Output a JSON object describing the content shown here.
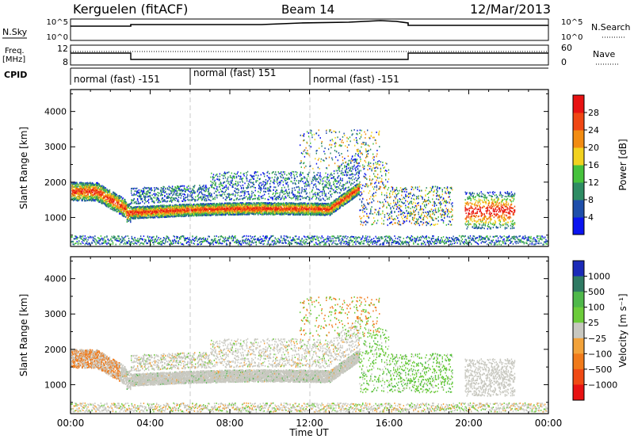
{
  "header": {
    "radar": "Kerguelen (fitACF)",
    "beam": "Beam 14",
    "date": "12/Mar/2013"
  },
  "params": {
    "nsky_label": "N.Sky",
    "nsearch_label": "N.Search",
    "nsky_ticks": [
      "10^5",
      "10^0"
    ],
    "freq_label_1": "Freq.",
    "freq_label_2": "[MHz]",
    "freq_ticks": [
      "12",
      "8"
    ],
    "nave_label": "Nave",
    "nave_ticks": [
      "60",
      "0"
    ],
    "cpid_label": "CPID",
    "cpid_segments": [
      {
        "label": "normal (fast) -151",
        "start": 0,
        "end": 6
      },
      {
        "label": "normal (fast) 151",
        "start": 6,
        "end": 12
      },
      {
        "label": "normal (fast) -151",
        "start": 12,
        "end": 24
      }
    ]
  },
  "chart_data": [
    {
      "type": "heatmap",
      "title": "",
      "ylabel": "Slant Range [km]",
      "xlabel": "",
      "x_range": [
        0,
        24
      ],
      "y_range": [
        180,
        4620
      ],
      "y_ticks": [
        "1000",
        "2000",
        "3000",
        "4000"
      ],
      "colorbar": {
        "label": "Power [dB]",
        "ticks": [
          "4",
          "8",
          "12",
          "16",
          "20",
          "24",
          "28"
        ],
        "colors": [
          "#0a14f0",
          "#1e4eaa",
          "#2e8c63",
          "#46c23c",
          "#f2d21f",
          "#f28c12",
          "#f04714",
          "#e81212"
        ]
      }
    },
    {
      "type": "heatmap",
      "title": "",
      "ylabel": "Slant Range [km]",
      "xlabel": "Time UT",
      "x_range": [
        0,
        24
      ],
      "y_range": [
        180,
        4620
      ],
      "y_ticks": [
        "1000",
        "2000",
        "3000",
        "4000"
      ],
      "x_ticks": [
        "00:00",
        "04:00",
        "08:00",
        "12:00",
        "16:00",
        "20:00",
        "00:00"
      ],
      "colorbar": {
        "label": "Velocity [m s⁻¹]",
        "ticks": [
          "1000",
          "500",
          "100",
          "25",
          "−25",
          "−100",
          "−500",
          "−1000"
        ],
        "colors": [
          "#1b2ab8",
          "#2f7a63",
          "#4fb84a",
          "#6ccc3a",
          "#c8c8c0",
          "#f2a23a",
          "#f07a1a",
          "#f04a14",
          "#e81212"
        ]
      }
    }
  ]
}
